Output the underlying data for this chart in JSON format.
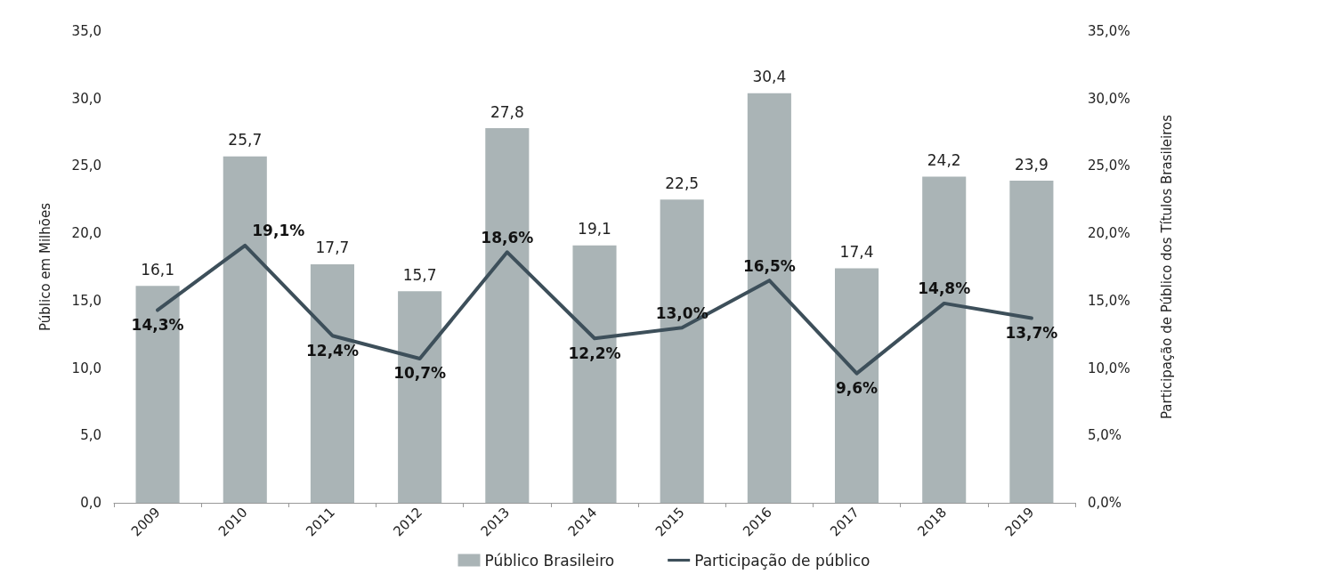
{
  "chart_data": {
    "type": "bar",
    "ylabel": "Público em Milhões",
    "y2label": "Participação de Público dos Títulos Brasileiros",
    "categories": [
      "2009",
      "2010",
      "2011",
      "2012",
      "2013",
      "2014",
      "2015",
      "2016",
      "2017",
      "2018",
      "2019"
    ],
    "series": [
      {
        "name": "Público Brasileiro",
        "color": "#aab4b6",
        "values": [
          16.1,
          25.7,
          17.7,
          15.7,
          27.8,
          19.1,
          22.5,
          30.4,
          17.4,
          24.2,
          23.9
        ],
        "value_labels": [
          "16,1",
          "25,7",
          "17,7",
          "15,7",
          "27,8",
          "19,1",
          "22,5",
          "30,4",
          "17,4",
          "24,2",
          "23,9"
        ]
      },
      {
        "name": "Participação de público",
        "type": "line",
        "axis": "y2",
        "color": "#3d4f5a",
        "values": [
          14.3,
          19.1,
          12.4,
          10.7,
          18.6,
          12.2,
          13.0,
          16.5,
          9.6,
          14.8,
          13.7
        ],
        "value_labels": [
          "14,3%",
          "19,1%",
          "12,4%",
          "10,7%",
          "18,6%",
          "12,2%",
          "13,0%",
          "16,5%",
          "9,6%",
          "14,8%",
          "13,7%"
        ]
      }
    ],
    "ylim": [
      0,
      35
    ],
    "yticks": [
      {
        "value": 0,
        "label": "0,0"
      },
      {
        "value": 5,
        "label": "5,0"
      },
      {
        "value": 10,
        "label": "10,0"
      },
      {
        "value": 15,
        "label": "15,0"
      },
      {
        "value": 20,
        "label": "20,0"
      },
      {
        "value": 25,
        "label": "25,0"
      },
      {
        "value": 30,
        "label": "30,0"
      },
      {
        "value": 35,
        "label": "35,0"
      }
    ],
    "y2lim": [
      0,
      35
    ],
    "y2ticks": [
      {
        "value": 0,
        "label": "0,0%"
      },
      {
        "value": 5,
        "label": "5,0%"
      },
      {
        "value": 10,
        "label": "10,0%"
      },
      {
        "value": 15,
        "label": "15,0%"
      },
      {
        "value": 20,
        "label": "20,0%"
      },
      {
        "value": 25,
        "label": "25,0%"
      },
      {
        "value": 30,
        "label": "30,0%"
      },
      {
        "value": 35,
        "label": "35,0%"
      }
    ],
    "grid": false,
    "legend": "bottom",
    "marker": "none",
    "line_style": "solid"
  }
}
